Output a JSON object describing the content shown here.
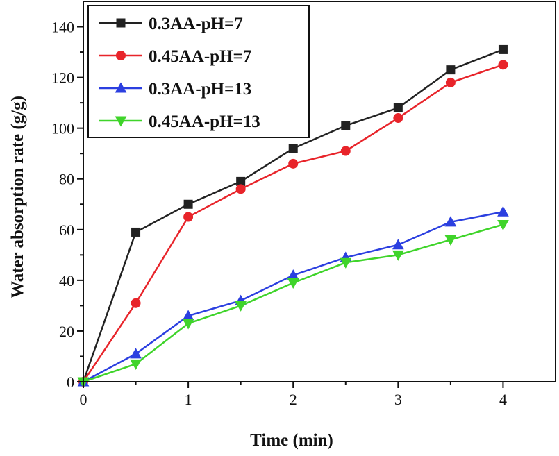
{
  "chart_data": {
    "type": "line",
    "title": "",
    "xlabel": "Time (min)",
    "ylabel": "Water absorption rate (g/g)",
    "xlim": [
      0,
      4.5
    ],
    "ylim": [
      0,
      150
    ],
    "xticks": [
      0,
      1,
      2,
      3,
      4
    ],
    "yticks": [
      0,
      20,
      40,
      60,
      80,
      100,
      120,
      140
    ],
    "x": [
      0,
      0.5,
      1,
      1.5,
      2,
      2.5,
      3,
      3.5,
      4
    ],
    "legend_position": "top-left",
    "series": [
      {
        "name": "0.3AA-pH=7",
        "color": "#222222",
        "marker": "square",
        "values": [
          0,
          59,
          70,
          79,
          92,
          101,
          108,
          123,
          131
        ]
      },
      {
        "name": "0.45AA-pH=7",
        "color": "#e8242a",
        "marker": "circle",
        "values": [
          0,
          31,
          65,
          76,
          86,
          91,
          104,
          118,
          125
        ]
      },
      {
        "name": "0.3AA-pH=13",
        "color": "#2b3fe0",
        "marker": "triangle-up",
        "values": [
          0,
          11,
          26,
          32,
          42,
          49,
          54,
          63,
          67
        ]
      },
      {
        "name": "0.45AA-pH=13",
        "color": "#3fd42a",
        "marker": "triangle-down",
        "values": [
          0,
          7,
          23,
          30,
          39,
          47,
          50,
          56,
          62
        ]
      }
    ]
  }
}
